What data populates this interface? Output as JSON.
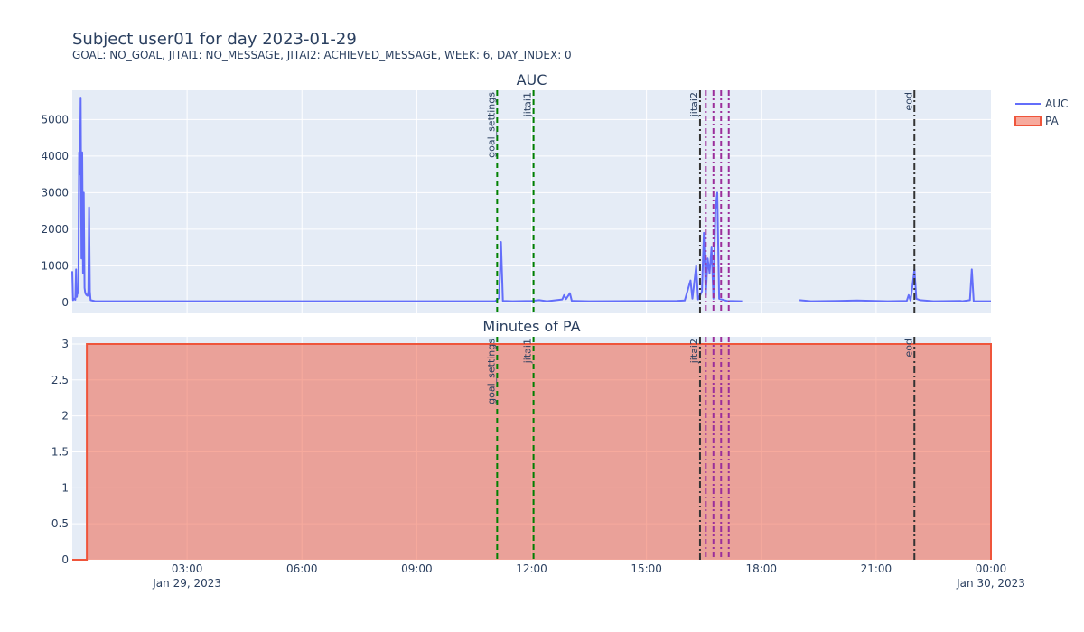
{
  "header": {
    "title": "Subject user01 for day 2023-01-29",
    "subtitle": "GOAL: NO_GOAL, JITAI1: NO_MESSAGE, JITAI2: ACHIEVED_MESSAGE, WEEK: 6, DAY_INDEX: 0"
  },
  "colors": {
    "auc_line": "#636efa",
    "pa_line": "#ef553b",
    "pa_fill": "rgba(239,85,59,0.5)",
    "plot_bg": "#e5ecf6",
    "grid": "#ffffff",
    "goal_line": "green",
    "jitai_line": "#333333",
    "burst_line": "#9b2e9b"
  },
  "chart_data": [
    {
      "type": "line",
      "title": "AUC",
      "x_unit": "hours since 2023-01-29 00:00",
      "xlim": [
        -1,
        23
      ],
      "ylim": [
        -300,
        5800
      ],
      "yticks": [
        0,
        1000,
        2000,
        3000,
        4000,
        5000
      ],
      "ytick_labels": [
        "0",
        "1000",
        "2000",
        "3000",
        "4000",
        "5000"
      ],
      "grid": true,
      "series": [
        {
          "name": "AUC",
          "points": [
            [
              -1.0,
              850
            ],
            [
              -0.98,
              60
            ],
            [
              -0.95,
              100
            ],
            [
              -0.92,
              70
            ],
            [
              -0.9,
              900
            ],
            [
              -0.88,
              150
            ],
            [
              -0.86,
              320
            ],
            [
              -0.84,
              250
            ],
            [
              -0.82,
              4100
            ],
            [
              -0.8,
              3500
            ],
            [
              -0.78,
              5600
            ],
            [
              -0.76,
              1200
            ],
            [
              -0.74,
              4100
            ],
            [
              -0.72,
              800
            ],
            [
              -0.7,
              3000
            ],
            [
              -0.68,
              400
            ],
            [
              -0.66,
              250
            ],
            [
              -0.63,
              200
            ],
            [
              -0.6,
              180
            ],
            [
              -0.58,
              300
            ],
            [
              -0.56,
              2600
            ],
            [
              -0.54,
              300
            ],
            [
              -0.52,
              60
            ],
            [
              -0.4,
              30
            ],
            [
              0.0,
              30
            ],
            [
              10.05,
              30
            ],
            [
              10.15,
              120
            ],
            [
              10.2,
              1650
            ],
            [
              10.25,
              40
            ],
            [
              10.5,
              30
            ],
            [
              11.0,
              40
            ],
            [
              11.2,
              60
            ],
            [
              11.4,
              30
            ],
            [
              11.8,
              80
            ],
            [
              11.85,
              200
            ],
            [
              11.9,
              90
            ],
            [
              12.0,
              250
            ],
            [
              12.05,
              40
            ],
            [
              12.5,
              30
            ],
            [
              14.8,
              40
            ],
            [
              15.0,
              50
            ],
            [
              15.15,
              600
            ],
            [
              15.2,
              100
            ],
            [
              15.3,
              1000
            ],
            [
              15.35,
              80
            ],
            [
              15.45,
              300
            ],
            [
              15.5,
              1900
            ],
            [
              15.55,
              200
            ],
            [
              15.6,
              1200
            ],
            [
              15.65,
              800
            ],
            [
              15.7,
              1500
            ],
            [
              15.75,
              100
            ],
            [
              15.8,
              2500
            ],
            [
              15.85,
              3000
            ],
            [
              15.9,
              100
            ],
            [
              16.1,
              40
            ],
            [
              16.5,
              30
            ]
          ]
        },
        {
          "name": "AUC",
          "points": [
            [
              18.0,
              60
            ],
            [
              18.3,
              30
            ],
            [
              19.0,
              40
            ],
            [
              19.5,
              50
            ],
            [
              20.3,
              30
            ],
            [
              20.8,
              40
            ],
            [
              20.85,
              200
            ],
            [
              20.9,
              50
            ],
            [
              20.95,
              450
            ],
            [
              21.0,
              900
            ],
            [
              21.05,
              100
            ],
            [
              21.15,
              60
            ],
            [
              21.5,
              30
            ],
            [
              22.2,
              40
            ],
            [
              22.25,
              30
            ],
            [
              22.45,
              60
            ],
            [
              22.5,
              900
            ],
            [
              22.55,
              30
            ],
            [
              23.0,
              30
            ]
          ]
        }
      ],
      "event_lines": [
        {
          "label": "goal_settings",
          "x": 10.1,
          "style": "goal"
        },
        {
          "label": "jitai1",
          "x": 11.05,
          "style": "goal"
        },
        {
          "label": "jitai2",
          "x": 15.4,
          "style": "jitai"
        },
        {
          "label": "",
          "x": 15.55,
          "style": "burst"
        },
        {
          "label": "",
          "x": 15.75,
          "style": "burst"
        },
        {
          "label": "",
          "x": 15.95,
          "style": "burst"
        },
        {
          "label": "",
          "x": 16.15,
          "style": "burst"
        },
        {
          "label": "eod",
          "x": 21.0,
          "style": "jitai"
        }
      ]
    },
    {
      "type": "area",
      "title": "Minutes of PA",
      "xlim": [
        -1,
        23
      ],
      "ylim": [
        0,
        3.1
      ],
      "yticks": [
        0,
        0.5,
        1,
        1.5,
        2,
        2.5,
        3
      ],
      "ytick_labels": [
        "0",
        "0.5",
        "1",
        "1.5",
        "2",
        "2.5",
        "3"
      ],
      "xticks": [
        2,
        5,
        8,
        11,
        14,
        17,
        20,
        23
      ],
      "xtick_labels": [
        "03:00",
        "06:00",
        "09:00",
        "12:00",
        "15:00",
        "18:00",
        "21:00",
        "00:00"
      ],
      "xtick_sublabels": [
        {
          "x": 2,
          "text": "Jan 29, 2023"
        },
        {
          "x": 23,
          "text": "Jan 30, 2023"
        }
      ],
      "grid": true,
      "series": [
        {
          "name": "PA",
          "points": [
            [
              -1.0,
              0
            ],
            [
              -0.62,
              0
            ],
            [
              -0.62,
              3
            ],
            [
              23.0,
              3
            ],
            [
              23.0,
              0
            ]
          ]
        }
      ],
      "event_lines": [
        {
          "label": "goal_settings",
          "x": 10.1,
          "style": "goal"
        },
        {
          "label": "jitai1",
          "x": 11.05,
          "style": "goal"
        },
        {
          "label": "jitai2",
          "x": 15.4,
          "style": "jitai"
        },
        {
          "label": "",
          "x": 15.55,
          "style": "burst"
        },
        {
          "label": "",
          "x": 15.75,
          "style": "burst"
        },
        {
          "label": "",
          "x": 15.95,
          "style": "burst"
        },
        {
          "label": "",
          "x": 16.15,
          "style": "burst"
        },
        {
          "label": "eod",
          "x": 21.0,
          "style": "jitai"
        }
      ]
    }
  ],
  "legend": {
    "placement": "top-right",
    "items": [
      {
        "name": "AUC",
        "kind": "line"
      },
      {
        "name": "PA",
        "kind": "area"
      }
    ]
  }
}
